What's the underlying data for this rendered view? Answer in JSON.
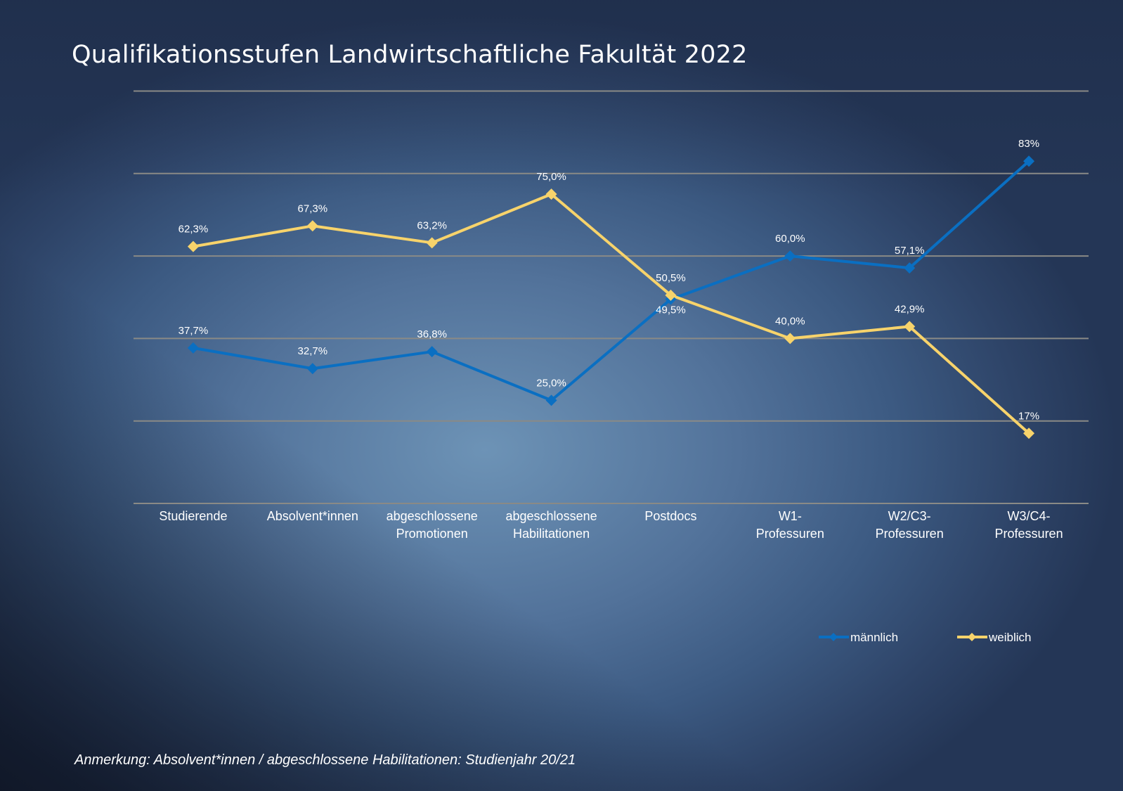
{
  "chart_data": {
    "type": "line",
    "title": "Qualifikationsstufen Landwirtschaftliche Fakultät 2022",
    "categories": [
      [
        "Studierende"
      ],
      [
        "Absolvent*innen"
      ],
      [
        "abgeschlossene",
        "Promotionen"
      ],
      [
        "abgeschlossene",
        "Habilitationen"
      ],
      [
        "Postdocs"
      ],
      [
        "W1-",
        "Professuren"
      ],
      [
        "W2/C3-",
        "Professuren"
      ],
      [
        "W3/C4-",
        "Professuren"
      ]
    ],
    "series": [
      {
        "name": "männlich",
        "color": "#0a6fc2",
        "values": [
          37.7,
          32.7,
          36.8,
          25.0,
          49.5,
          60.0,
          57.1,
          83
        ],
        "labels": [
          "37,7%",
          "32,7%",
          "36,8%",
          "25,0%",
          "49,5%",
          "60,0%",
          "57,1%",
          "83%"
        ]
      },
      {
        "name": "weiblich",
        "color": "#f7d36b",
        "values": [
          62.3,
          67.3,
          63.2,
          75.0,
          50.5,
          40.0,
          42.9,
          17
        ],
        "labels": [
          "62,3%",
          "67,3%",
          "63,2%",
          "75,0%",
          "50,5%",
          "40,0%",
          "42,9%",
          "17%"
        ]
      }
    ],
    "ylim": [
      0,
      100
    ],
    "gridlines": [
      0,
      20,
      40,
      60,
      80,
      100
    ],
    "grid": true,
    "y_tick_labels_shown": false,
    "legend_position": "bottom-right",
    "xlabel": "",
    "ylabel": ""
  },
  "note": "Anmerkung: Absolvent*innen / abgeschlossene Habilitationen: Studienjahr 20/21"
}
